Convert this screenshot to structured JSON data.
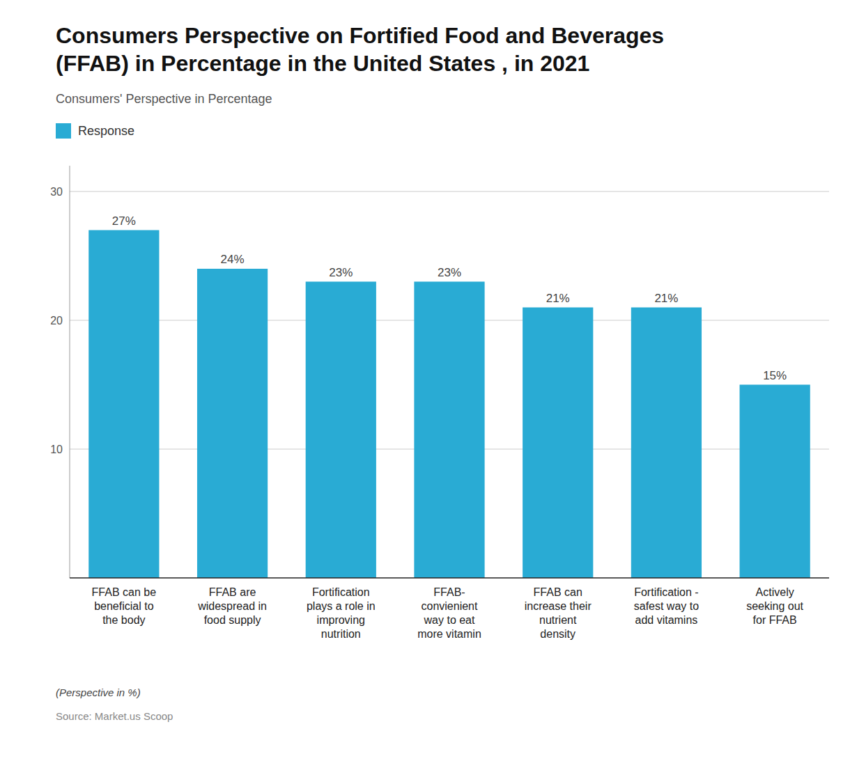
{
  "chart_data": {
    "type": "bar",
    "title": "Consumers Perspective on Fortified Food and Beverages\n(FFAB) in Percentage in the United States , in 2021",
    "subtitle": "Consumers' Perspective in Percentage",
    "categories": [
      "FFAB can be\nbeneficial to\nthe body",
      "FFAB are\nwidespread in\nfood supply",
      "Fortification\nplays a role in\nimproving\nnutrition",
      "FFAB-\nconvienient\nway to eat\nmore vitamin",
      "FFAB can\nincrease their\nnutrient\ndensity",
      "Fortification -\nsafest way to\nadd vitamins",
      "Actively\nseeking out\nfor FFAB"
    ],
    "series": [
      {
        "name": "Response",
        "color": "#29ABD4",
        "values": [
          27,
          24,
          23,
          23,
          21,
          21,
          15
        ],
        "value_labels": [
          "27%",
          "24%",
          "23%",
          "23%",
          "21%",
          "21%",
          "15%"
        ]
      }
    ],
    "ylim": [
      0,
      32
    ],
    "yticks": [
      10,
      20,
      30
    ],
    "grid": true,
    "legend": "upper left",
    "data_labels": true,
    "annotations": [
      "(Perspective in %)",
      "Source: Market.us Scoop"
    ]
  }
}
